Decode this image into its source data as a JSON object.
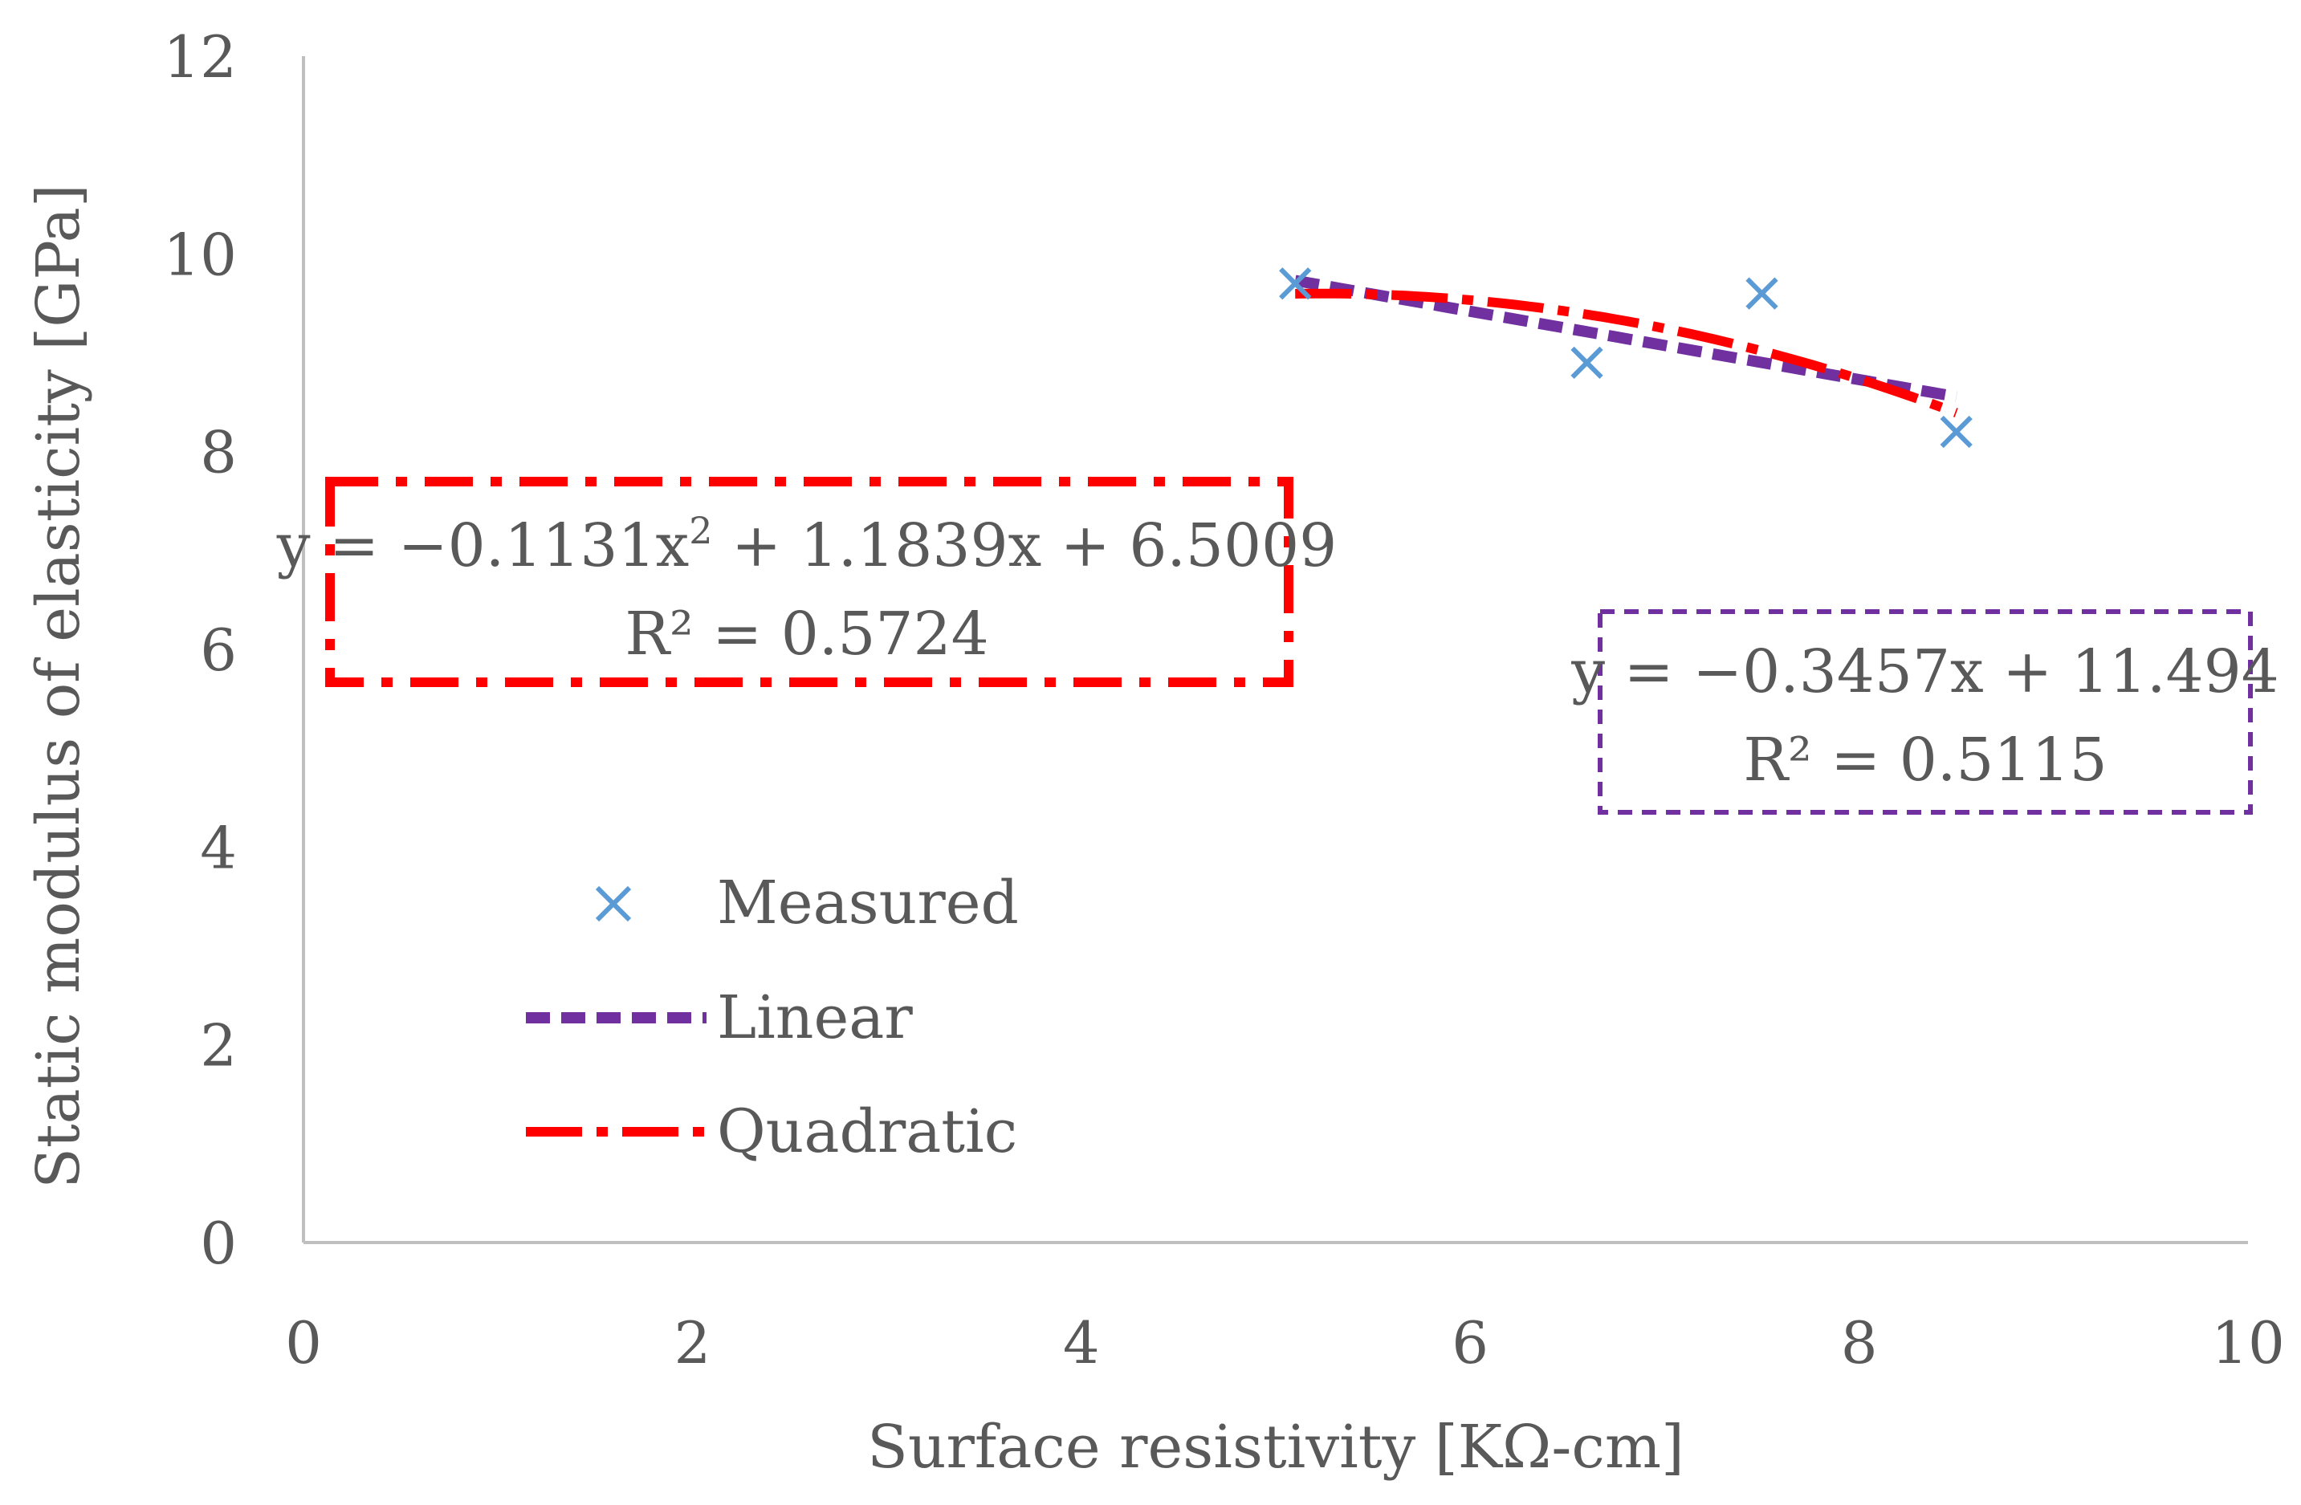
{
  "chart_data": {
    "type": "scatter",
    "title": "",
    "xlabel": "Surface resistivity [KΩ-cm]",
    "ylabel": "Static modulus of elasticity [GPa]",
    "xlim": [
      0,
      10
    ],
    "ylim": [
      0,
      12
    ],
    "x_ticks": [
      "0",
      "2",
      "4",
      "6",
      "8",
      "10"
    ],
    "y_ticks": [
      "0",
      "2",
      "4",
      "6",
      "8",
      "10",
      "12"
    ],
    "grid": false,
    "legend_position": "left-bottom",
    "series": [
      {
        "name": "Measured",
        "kind": "scatter",
        "marker": "x",
        "color": "#5B9BD5",
        "points": [
          {
            "x": 5.1,
            "y": 9.7
          },
          {
            "x": 6.6,
            "y": 8.9
          },
          {
            "x": 7.5,
            "y": 9.6
          },
          {
            "x": 8.5,
            "y": 8.2
          }
        ]
      },
      {
        "name": "Linear",
        "kind": "trendline",
        "style": "dashed",
        "color": "#7030A0",
        "x_range": [
          5.1,
          8.5
        ],
        "coefficients": {
          "a": 0,
          "b": -0.3457,
          "c": 11.494
        },
        "equation": "y = −0.3457x + 11.494",
        "r2": "R² = 0.5115"
      },
      {
        "name": "Quadratic",
        "kind": "trendline",
        "style": "dash-dot",
        "color": "#FF0000",
        "x_range": [
          5.1,
          8.5
        ],
        "coefficients": {
          "a": -0.1131,
          "b": 1.1839,
          "c": 6.5009
        },
        "equation_parts": [
          "y = −0.1131x",
          "2",
          " + 1.1839x + 6.5009"
        ],
        "r2": "R² = 0.5724"
      }
    ]
  }
}
